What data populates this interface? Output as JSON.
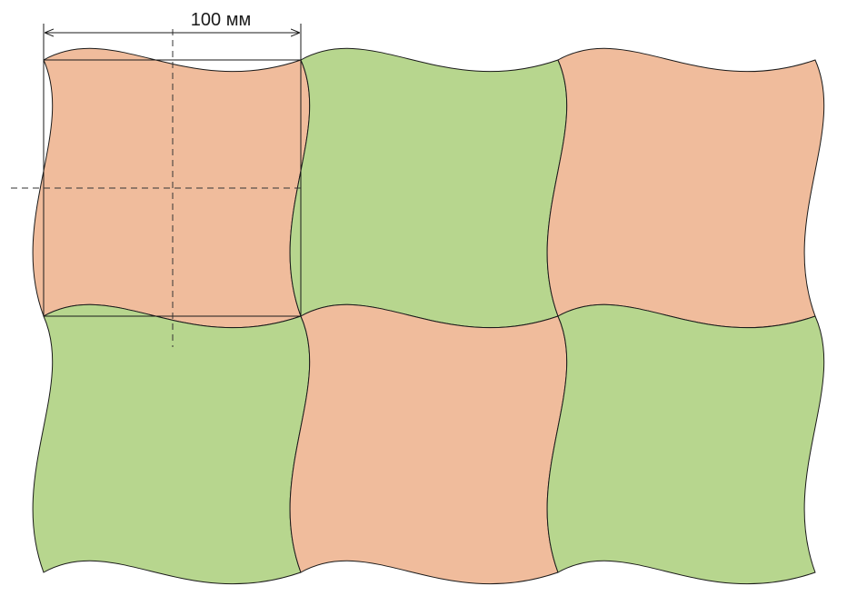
{
  "dimension": {
    "label": "100 мм"
  },
  "colors": {
    "salmon": "#F0BC9C",
    "green": "#B7D68E",
    "stroke": "#1a1a1a"
  },
  "tiles": [
    {
      "row": 0,
      "col": 0,
      "color": "salmon"
    },
    {
      "row": 0,
      "col": 1,
      "color": "green"
    },
    {
      "row": 0,
      "col": 2,
      "color": "salmon"
    },
    {
      "row": 1,
      "col": 0,
      "color": "green"
    },
    {
      "row": 1,
      "col": 1,
      "color": "salmon"
    },
    {
      "row": 1,
      "col": 2,
      "color": "green"
    }
  ]
}
